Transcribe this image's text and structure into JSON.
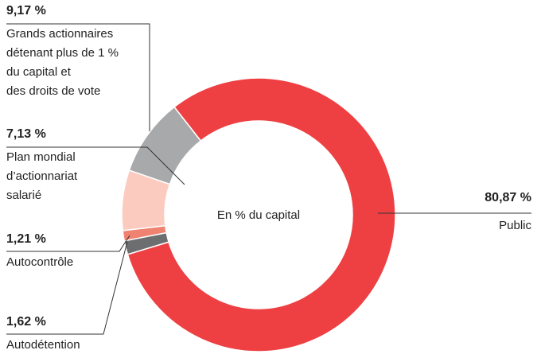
{
  "chart_data": {
    "type": "donut",
    "title": "En % du capital",
    "categories": [
      "Public",
      "Autodétention",
      "Autocontrôle",
      "Plan mondial\nd’actionnariat\nsalarié",
      "Grands actionnaires\ndétenant plus de 1 %\ndu capital et\ndes droits de vote"
    ],
    "values": [
      80.87,
      1.62,
      1.21,
      7.13,
      9.17
    ],
    "value_labels": [
      "80,87 %",
      "1,62 %",
      "1,21 %",
      "7,13 %",
      "9,17 %"
    ],
    "colors": [
      "#ee4043",
      "#6d6e70",
      "#f08272",
      "#fccbc0",
      "#a8a9ab"
    ]
  }
}
